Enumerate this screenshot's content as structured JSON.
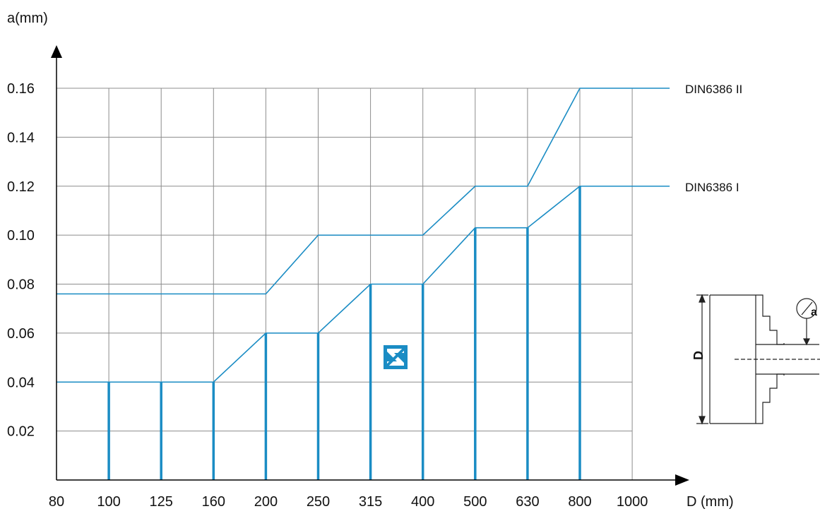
{
  "chart_data": {
    "type": "line",
    "xlabel": "D (mm)",
    "ylabel": "a(mm)",
    "categories": [
      "80",
      "100",
      "125",
      "160",
      "200",
      "250",
      "315",
      "400",
      "500",
      "630",
      "800",
      "1000"
    ],
    "y_ticks": [
      "0.02",
      "0.04",
      "0.06",
      "0.08",
      "0.10",
      "0.12",
      "0.14",
      "0.16"
    ],
    "ylim": [
      0,
      0.16
    ],
    "grid": true,
    "series": [
      {
        "name": "DIN6386 II",
        "points": [
          {
            "x": "80",
            "y": 0.076
          },
          {
            "x": "200",
            "y": 0.076
          },
          {
            "x": "250",
            "y": 0.1
          },
          {
            "x": "400",
            "y": 0.1
          },
          {
            "x": "500",
            "y": 0.12
          },
          {
            "x": "630",
            "y": 0.12
          },
          {
            "x": "800",
            "y": 0.16
          },
          {
            "x": "1000",
            "y": 0.16
          }
        ]
      },
      {
        "name": "DIN6386 I",
        "points": [
          {
            "x": "80",
            "y": 0.04
          },
          {
            "x": "160",
            "y": 0.04
          },
          {
            "x": "200",
            "y": 0.06
          },
          {
            "x": "250",
            "y": 0.06
          },
          {
            "x": "315",
            "y": 0.08
          },
          {
            "x": "400",
            "y": 0.08
          },
          {
            "x": "500",
            "y": 0.103
          },
          {
            "x": "630",
            "y": 0.103
          },
          {
            "x": "800",
            "y": 0.12
          },
          {
            "x": "1000",
            "y": 0.12
          }
        ]
      }
    ],
    "bars": [
      {
        "x": "100",
        "y": 0.04
      },
      {
        "x": "125",
        "y": 0.04
      },
      {
        "x": "160",
        "y": 0.04
      },
      {
        "x": "200",
        "y": 0.06
      },
      {
        "x": "250",
        "y": 0.06
      },
      {
        "x": "315",
        "y": 0.08
      },
      {
        "x": "400",
        "y": 0.08
      },
      {
        "x": "500",
        "y": 0.103
      },
      {
        "x": "630",
        "y": 0.103
      },
      {
        "x": "800",
        "y": 0.12
      }
    ],
    "colors": {
      "series": "#1a8cc4",
      "grid": "#8c8c8c",
      "axis": "#000000"
    }
  },
  "diagram": {
    "dimension_label": "D",
    "gauge_label": "a",
    "logo": "Z"
  }
}
